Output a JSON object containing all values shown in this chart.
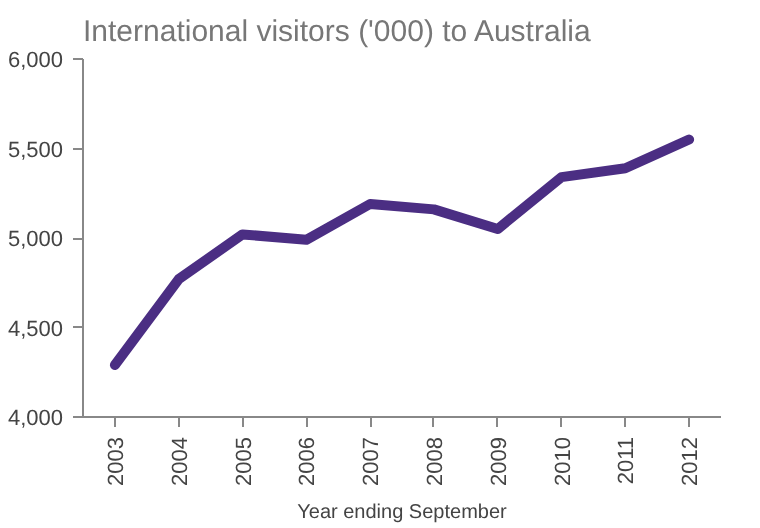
{
  "chart_data": {
    "type": "line",
    "title": "International visitors ('000) to Australia",
    "xlabel": "Year ending September",
    "categories": [
      "2003",
      "2004",
      "2005",
      "2006",
      "2007",
      "2008",
      "2009",
      "2010",
      "2011",
      "2012"
    ],
    "series": [
      {
        "color": "#4b2e83",
        "values": [
          4290,
          4770,
          5020,
          4990,
          5190,
          5160,
          5050,
          5340,
          5390,
          5550
        ]
      }
    ],
    "ylim": [
      4000,
      6000
    ],
    "yticks": [
      {
        "value": 4000,
        "label": "4,000"
      },
      {
        "value": 4500,
        "label": "4,500"
      },
      {
        "value": 5000,
        "label": "5,000"
      },
      {
        "value": 5500,
        "label": "5,500"
      },
      {
        "value": 6000,
        "label": "6,000"
      }
    ],
    "grid": false,
    "marker": "none",
    "line_style": "solid"
  }
}
